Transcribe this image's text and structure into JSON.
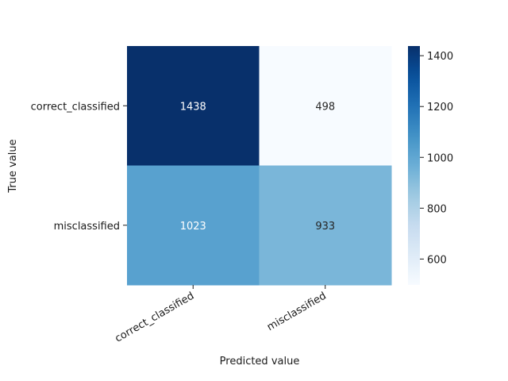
{
  "chart_data": {
    "type": "heatmap",
    "title": "",
    "xlabel": "Predicted value",
    "ylabel": "True value",
    "x_categories": [
      "correct_classified",
      "misclassified"
    ],
    "y_categories": [
      "correct_classified",
      "misclassified"
    ],
    "values": [
      [
        1438,
        498
      ],
      [
        1023,
        933
      ]
    ],
    "colormap": "Blues",
    "colorbar": {
      "min": 498,
      "max": 1438,
      "ticks": [
        600,
        800,
        1000,
        1200,
        1400
      ]
    }
  }
}
